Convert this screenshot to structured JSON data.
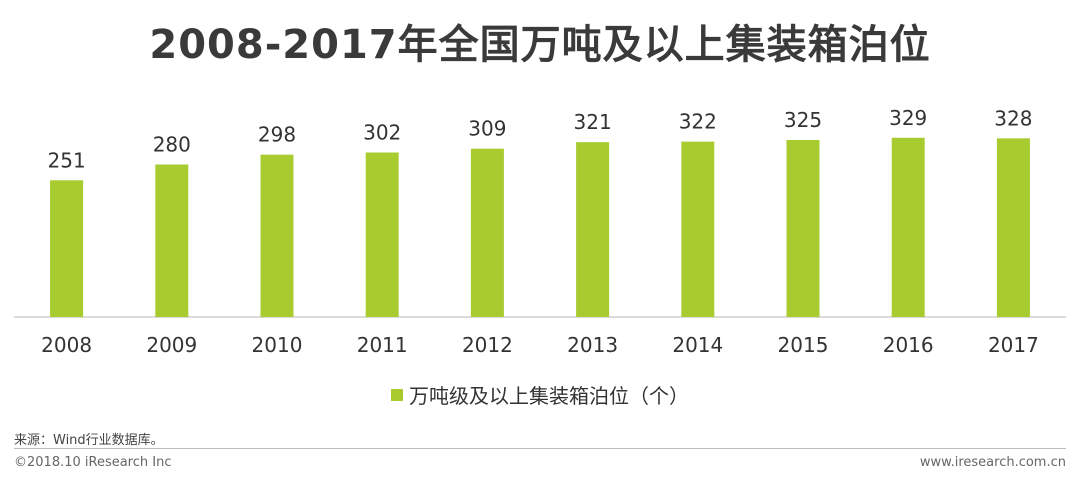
{
  "colors": {
    "bar": "#a8cc2f",
    "axis": "#cfcfcf",
    "text": "#333333"
  },
  "chart_data": {
    "type": "bar",
    "title": "2008-2017年全国万吨及以上集装箱泊位",
    "categories": [
      "2008",
      "2009",
      "2010",
      "2011",
      "2012",
      "2013",
      "2014",
      "2015",
      "2016",
      "2017"
    ],
    "series": [
      {
        "name": "万吨级及以上集装箱泊位（个）",
        "values": [
          251,
          280,
          298,
          302,
          309,
          321,
          322,
          325,
          329,
          328
        ]
      }
    ],
    "legend_position": "bottom",
    "grid": false
  },
  "source": "来源：Wind行业数据库。",
  "copyright": "©2018.10 iResearch Inc",
  "website": "www.iresearch.com.cn"
}
